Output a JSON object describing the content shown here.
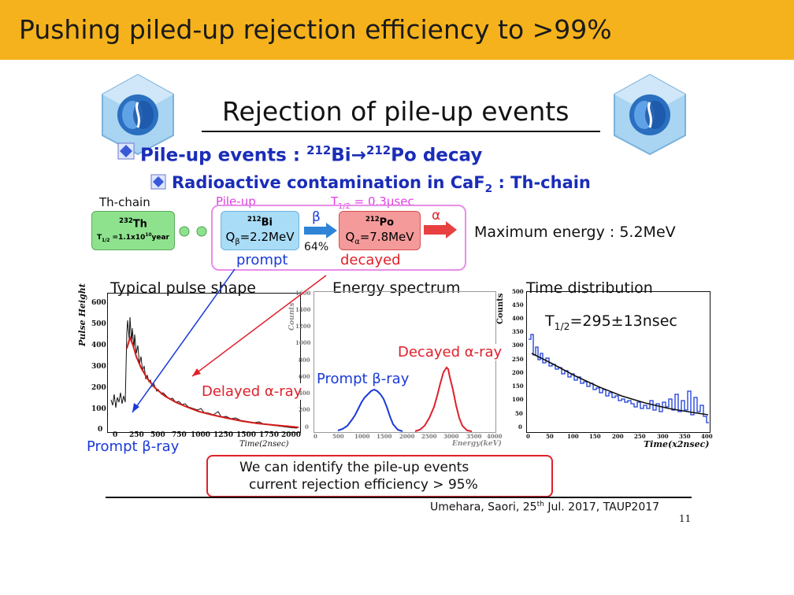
{
  "header": {
    "title": "Pushing piled-up rejection efficiency to >99%"
  },
  "slide": {
    "title": "Rejection of pile-up events",
    "bullet1": {
      "prefix": "Pile-up events : ",
      "iso1_mass": "212",
      "iso1_sym": "Bi",
      "arrow": "→",
      "iso2_mass": "212",
      "iso2_sym": "Po decay"
    },
    "bullet2": {
      "text": "Radioactive contamination in CaF",
      "sub": "2",
      "suffix": " : Th-chain"
    }
  },
  "chain": {
    "th_chain_label": "Th-chain",
    "pileup_label": "Pile-up",
    "halflife_pre": "T",
    "halflife_sub": "1/2",
    "halflife_post": " = 0.3μsec",
    "th": {
      "mass": "232",
      "sym": "Th",
      "halflife_pre": "T",
      "halflife_sub": "1/2",
      "halflife_post": " =1.1x10",
      "halflife_exp": "10",
      "halflife_unit": "year"
    },
    "bi": {
      "mass": "212",
      "sym": "Bi",
      "q_pre": "Q",
      "q_sub": "β",
      "q_post": "=2.2MeV"
    },
    "po": {
      "mass": "212",
      "sym": "Po",
      "q_pre": "Q",
      "q_sub": "α",
      "q_post": "=7.8MeV"
    },
    "beta_label": "β",
    "branch": "64%",
    "alpha_label": "α",
    "prompt": "prompt",
    "decayed": "decayed",
    "max_energy": "Maximum energy : 5.2MeV"
  },
  "plots": {
    "pulse": {
      "title": "Typical pulse shape",
      "ylabel": "Pulse Height",
      "xlabel": "Time(2nsec)",
      "yticks": [
        "600",
        "500",
        "400",
        "300",
        "200",
        "100",
        "0"
      ],
      "xticks": [
        "0",
        "250",
        "500",
        "750",
        "1000",
        "1250",
        "1500",
        "1750",
        "2000"
      ],
      "delayed_label": "Delayed α-ray",
      "prompt_label": "Prompt β-ray"
    },
    "energy": {
      "title": "Energy spectrum",
      "ylabel": "Counts",
      "xlabel": "Energy(keV)",
      "yticks": [
        "1600",
        "1400",
        "1200",
        "1000",
        "800",
        "600",
        "400",
        "200",
        "0"
      ],
      "xticks": [
        "0",
        "500",
        "1000",
        "1500",
        "2000",
        "2500",
        "3000",
        "3500",
        "4000"
      ],
      "decayed_label": "Decayed α-ray",
      "prompt_label": "Prompt β-ray"
    },
    "time": {
      "title": "Time distribution",
      "ylabel": "Counts",
      "xlabel": "Time(x2nsec)",
      "yticks": [
        "500",
        "450",
        "400",
        "350",
        "300",
        "250",
        "200",
        "150",
        "100",
        "50",
        "0"
      ],
      "xticks": [
        "0",
        "50",
        "100",
        "150",
        "200",
        "250",
        "300",
        "350",
        "400"
      ],
      "fit_pre": "T",
      "fit_sub": "1/2",
      "fit_post": "=295±13nsec"
    }
  },
  "conclusion": {
    "line1": "We can identify the pile-up events",
    "line2": "current rejection efficiency > 95%"
  },
  "footer": {
    "citation_pre": "Umehara, Saori, 25",
    "citation_sup": "th",
    "citation_post": " Jul. 2017, TAUP2017",
    "page": "11"
  },
  "colors": {
    "header": "#f5b21c",
    "bullet": "#1a2db8",
    "red": "#e0202a",
    "magenta": "#e040e0",
    "blue": "#1a3ad8"
  }
}
